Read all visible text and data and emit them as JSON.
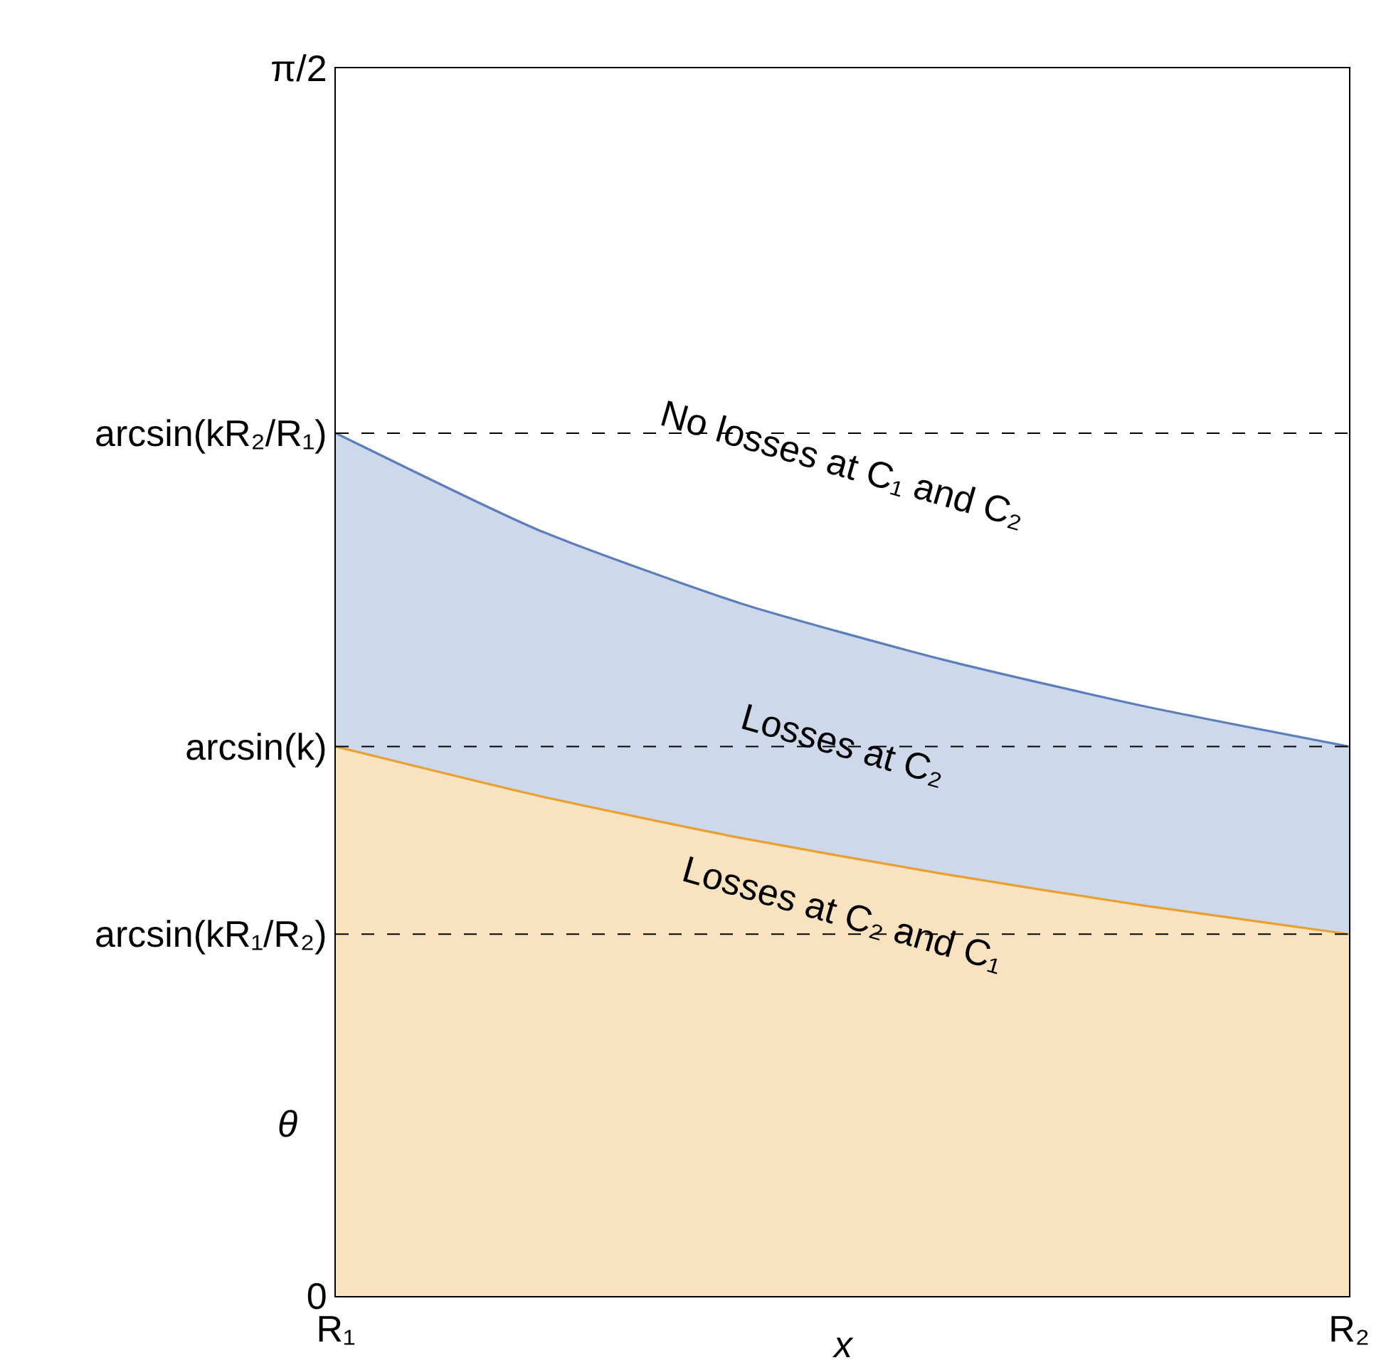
{
  "chart_data": {
    "type": "area",
    "xlabel": "x",
    "ylabel": "θ",
    "categories": [
      "R₁",
      null,
      null,
      null,
      null,
      "R₂"
    ],
    "series": [
      {
        "color": "#e8a030",
        "values": [
          0.703,
          0.64,
          0.586,
          0.54,
          0.499,
          0.463
        ]
      },
      {
        "color": "#5b7fbd",
        "values": [
          1.104,
          0.98,
          0.886,
          0.814,
          0.754,
          0.703
        ]
      }
    ],
    "ylim": [
      0,
      1.5708
    ],
    "yticks": [
      0,
      {
        "value": 0.463,
        "label": "arcsin(kR₁/R₂)"
      },
      {
        "value": 0.703,
        "label": "arcsin(k)"
      },
      {
        "value": 1.104,
        "label": "arcsin(kR₂/R₁)"
      },
      {
        "value": 1.5708,
        "label": "π/2"
      }
    ],
    "ref_lines": [
      {
        "axis": "y",
        "value": 1.104,
        "color": "#000000",
        "line_style": "dashed"
      },
      {
        "axis": "y",
        "value": 0.703,
        "color": "#000000",
        "line_style": "dashed"
      },
      {
        "axis": "y",
        "value": 0.463,
        "color": "#000000",
        "line_style": "dashed"
      }
    ],
    "annotations": [
      "No losses at C₁ and C₂",
      "Losses at C₂",
      "Losses at C₂ and C₁"
    ]
  }
}
